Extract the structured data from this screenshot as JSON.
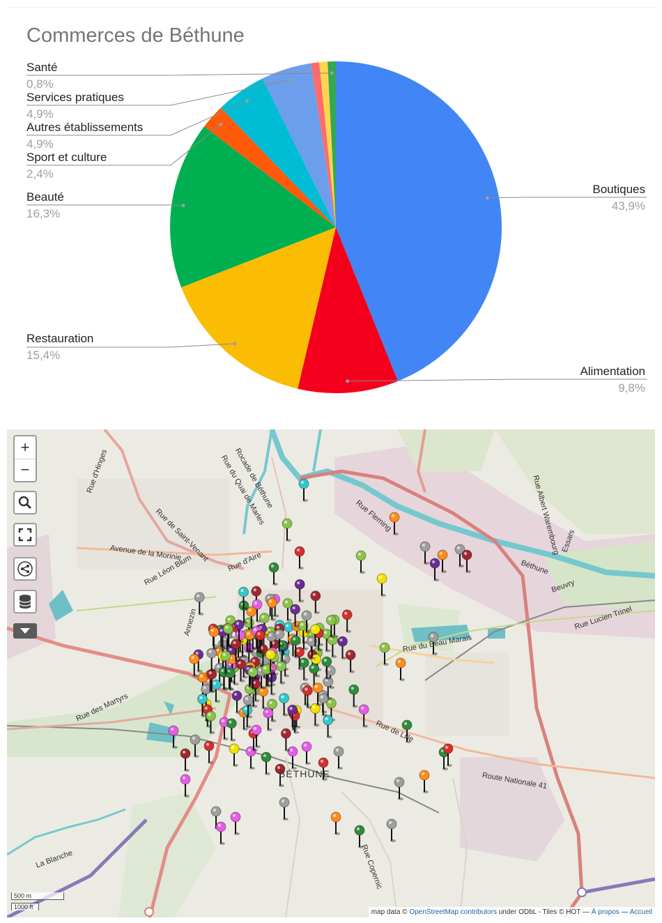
{
  "chart_data": {
    "type": "pie",
    "title": "Commerces de Béthune",
    "slices": [
      {
        "label": "Boutiques",
        "value": 43.9,
        "display": "43,9%",
        "color": "#4285f4"
      },
      {
        "label": "Alimentation",
        "value": 9.8,
        "display": "9,8%",
        "color": "#f4001c"
      },
      {
        "label": "Restauration",
        "value": 15.4,
        "display": "15,4%",
        "color": "#fbbc04"
      },
      {
        "label": "Beauté",
        "value": 16.3,
        "display": "16,3%",
        "color": "#00b050"
      },
      {
        "label": "Sport et culture",
        "value": 2.4,
        "display": "2,4%",
        "color": "#ff5a0a"
      },
      {
        "label": "Autres établissements",
        "value": 4.9,
        "display": "4,9%",
        "color": "#00bcd4"
      },
      {
        "label": "Services pratiques",
        "value": 4.9,
        "display": "4,9%",
        "color": "#6d9eeb"
      },
      {
        "label": "",
        "value": 0.8,
        "display": "",
        "color": "#ff6b6b"
      },
      {
        "label": "",
        "value": 0.8,
        "display": "",
        "color": "#ffd54f"
      },
      {
        "label": "Santé",
        "value": 0.8,
        "display": "0,8%",
        "color": "#34a853"
      }
    ],
    "legend": "none"
  },
  "map": {
    "controls": {
      "zoom_in": "+",
      "zoom_out": "−"
    },
    "icons": [
      "search-icon",
      "fullscreen-icon",
      "share-icon",
      "layers-icon",
      "chevron-down-icon"
    ],
    "streets": [
      "Rue d'Hinges",
      "Rocade de Béthune",
      "Rue du Quai de Marles",
      "Rue Fleming",
      "Rue de Saint-Venant",
      "Avenue de la Morinie",
      "Rue d'Aire",
      "Rue Léon Blum",
      "Rue du Beau Marais",
      "Rue des Martyrs",
      "Rue de Lille",
      "Route Nationale 41",
      "Rue Albert Warembourg",
      "Rue Lucien Trinel",
      "Rue Copernic",
      "Annezin",
      "Essars",
      "Beuvry",
      "Béthune",
      "La Blanche"
    ],
    "city_label": "BÉTHUNE",
    "scale": {
      "metric": "500 m",
      "imperial": "1000 ft"
    },
    "attribution": {
      "prefix": "map data ©",
      "osm_link": "OpenStreetMap contributors",
      "middle": "under ODbL - Tiles © HOT —",
      "about_link": "À propos",
      "sep": "—",
      "home_link": "Accueil"
    },
    "marker_colors": {
      "grey": "#9e9e9e",
      "red": "#d32f2f",
      "darkred": "#a2262f",
      "green": "#2e8b3a",
      "lightgreen": "#8bc34a",
      "orange": "#ff8c1a",
      "pink": "#e55ce5",
      "yellow": "#f5e000",
      "cyan": "#33c6cc",
      "purple": "#6a2c91",
      "black": "#111111"
    }
  }
}
